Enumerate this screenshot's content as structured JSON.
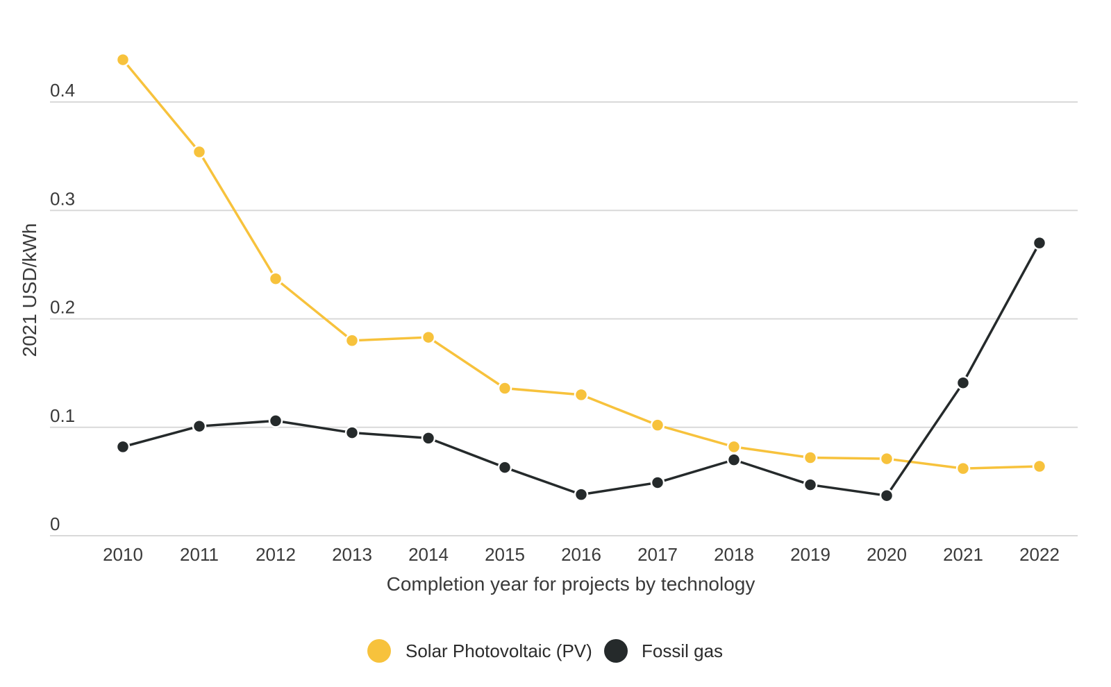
{
  "chart_data": {
    "type": "line",
    "title": "",
    "xlabel": "Completion year for projects by technology",
    "ylabel": "2021 USD/kWh",
    "categories": [
      "2010",
      "2011",
      "2012",
      "2013",
      "2014",
      "2015",
      "2016",
      "2017",
      "2018",
      "2019",
      "2020",
      "2021",
      "2022"
    ],
    "y_ticks": [
      "0",
      "0.1",
      "0.2",
      "0.3",
      "0.4"
    ],
    "ylim": [
      0,
      0.45
    ],
    "grid": true,
    "legend_position": "bottom",
    "series": [
      {
        "name": "Solar Photovoltaic (PV)",
        "color": "#f7c23c",
        "values": [
          0.439,
          0.354,
          0.237,
          0.18,
          0.183,
          0.136,
          0.13,
          0.102,
          0.082,
          0.072,
          0.071,
          0.062,
          0.064
        ]
      },
      {
        "name": "Fossil gas",
        "color": "#252a2b",
        "values": [
          0.082,
          0.101,
          0.106,
          0.095,
          0.09,
          0.063,
          0.038,
          0.049,
          0.07,
          0.047,
          0.037,
          0.141,
          0.27
        ]
      }
    ]
  }
}
